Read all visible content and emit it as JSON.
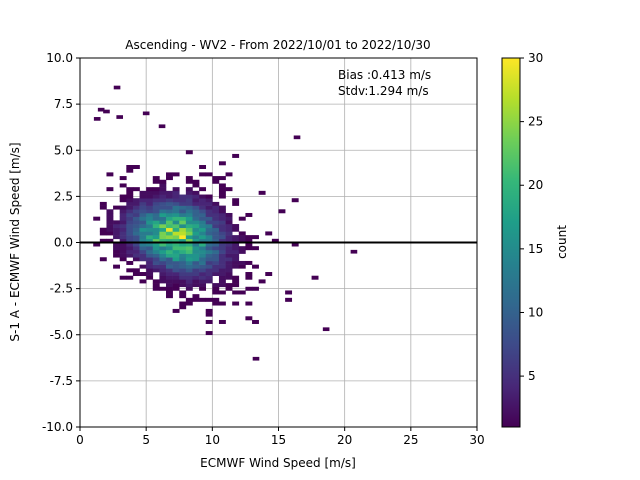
{
  "chart_data": {
    "type": "heatmap",
    "title": "Ascending - WV2 - From 2022/10/01 to 2022/10/30",
    "xlabel": "ECMWF Wind Speed [m/s]",
    "ylabel": "S-1 A - ECMWF Wind Speed [m/s]",
    "xlim": [
      0,
      30
    ],
    "ylim": [
      -10,
      10
    ],
    "xticks": [
      0,
      5,
      10,
      15,
      20,
      25,
      30
    ],
    "yticks": [
      -10.0,
      -7.5,
      -5.0,
      -2.5,
      0.0,
      2.5,
      5.0,
      7.5,
      10.0
    ],
    "grid": true,
    "reference_line": {
      "y": 0.0,
      "color": "#000000"
    },
    "annotations": [
      "Bias :0.413 m/s",
      "Stdv:1.294 m/s"
    ],
    "colorbar": {
      "label": "count",
      "min": 1,
      "max": 30,
      "ticks": [
        5,
        10,
        15,
        20,
        25,
        30
      ],
      "colormap": "viridis"
    },
    "density_model": {
      "x_center": 7.2,
      "y_center": 0.35,
      "x_spread": 2.8,
      "y_spread": 1.25,
      "peak_count": 27,
      "x_range": [
        0.8,
        20.8
      ],
      "y_range": [
        -6.3,
        8.5
      ]
    },
    "outlier_points": [
      [
        2.8,
        8.4
      ],
      [
        16.4,
        5.7
      ],
      [
        18.6,
        -4.7
      ],
      [
        13.3,
        -6.3
      ],
      [
        20.7,
        -0.5
      ],
      [
        1.6,
        7.2
      ],
      [
        2.0,
        7.1
      ],
      [
        1.3,
        6.7
      ],
      [
        5.0,
        7.0
      ],
      [
        6.2,
        6.3
      ],
      [
        3.0,
        6.8
      ]
    ]
  }
}
